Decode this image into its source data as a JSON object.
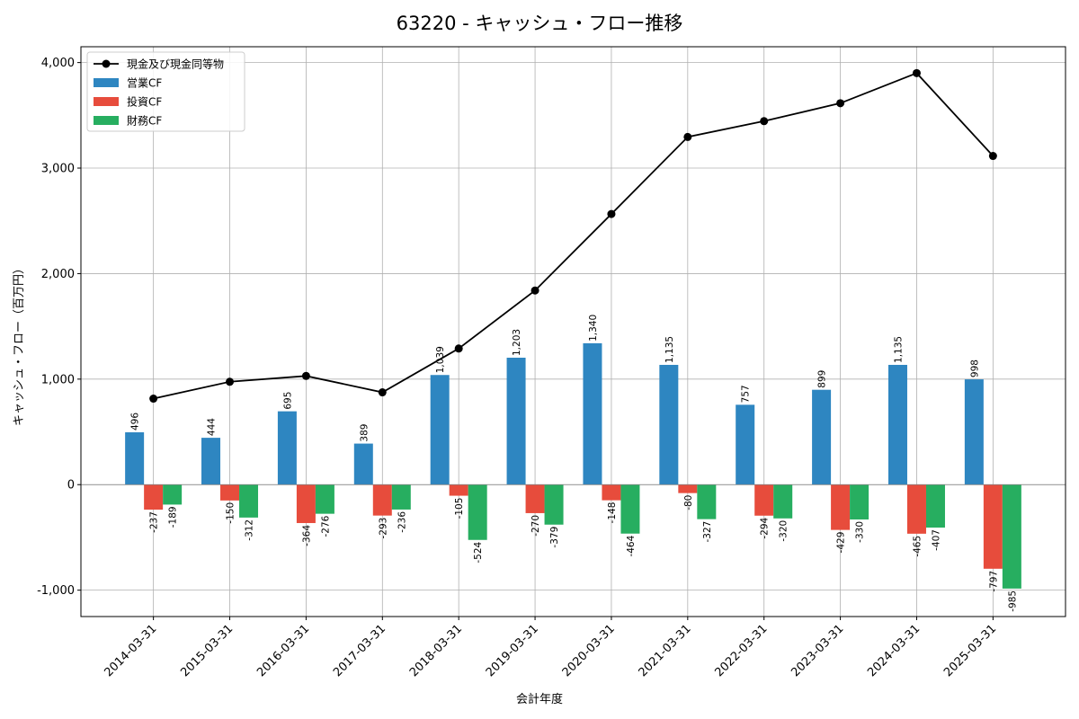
{
  "chart_data": {
    "type": "bar",
    "title": "63220 - キャッシュ・フロー推移",
    "xlabel": "会計年度",
    "ylabel": "キャッシュ・フロー（百万円）",
    "ylim": [
      -1250,
      4150
    ],
    "yticks": [
      -1000,
      0,
      1000,
      2000,
      3000,
      4000
    ],
    "ytick_labels": [
      "-1,000",
      "0",
      "1,000",
      "2,000",
      "3,000",
      "4,000"
    ],
    "grid": true,
    "legend_position": "top-left",
    "categories": [
      "2014-03-31",
      "2015-03-31",
      "2016-03-31",
      "2017-03-31",
      "2018-03-31",
      "2019-03-31",
      "2020-03-31",
      "2021-03-31",
      "2022-03-31",
      "2023-03-31",
      "2024-03-31",
      "2025-03-31"
    ],
    "series": [
      {
        "name": "営業CF",
        "kind": "bar",
        "color": "#2e86c1",
        "values": [
          496,
          444,
          695,
          389,
          1039,
          1203,
          1340,
          1135,
          757,
          899,
          1135,
          998
        ],
        "labels": [
          "496",
          "444",
          "695",
          "389",
          "1,039",
          "1,203",
          "1,340",
          "1,135",
          "757",
          "899",
          "1,135",
          "998"
        ]
      },
      {
        "name": "投資CF",
        "kind": "bar",
        "color": "#e74c3c",
        "values": [
          -237,
          -150,
          -364,
          -293,
          -105,
          -270,
          -148,
          -80,
          -294,
          -429,
          -465,
          -797
        ],
        "labels": [
          "-237",
          "-150",
          "-364",
          "-293",
          "-105",
          "-270",
          "-148",
          "-80",
          "-294",
          "-429",
          "-465",
          "-797"
        ]
      },
      {
        "name": "財務CF",
        "kind": "bar",
        "color": "#27ae60",
        "values": [
          -189,
          -312,
          -276,
          -236,
          -524,
          -379,
          -464,
          -327,
          -320,
          -330,
          -407,
          -985
        ],
        "labels": [
          "-189",
          "-312",
          "-276",
          "-236",
          "-524",
          "-379",
          "-464",
          "-327",
          "-320",
          "-330",
          "-407",
          "-985"
        ]
      },
      {
        "name": "現金及び現金同等物",
        "kind": "line",
        "color": "#000000",
        "values": [
          815,
          975,
          1030,
          875,
          1290,
          1840,
          2565,
          3295,
          3445,
          3615,
          3900,
          3115
        ]
      }
    ]
  }
}
